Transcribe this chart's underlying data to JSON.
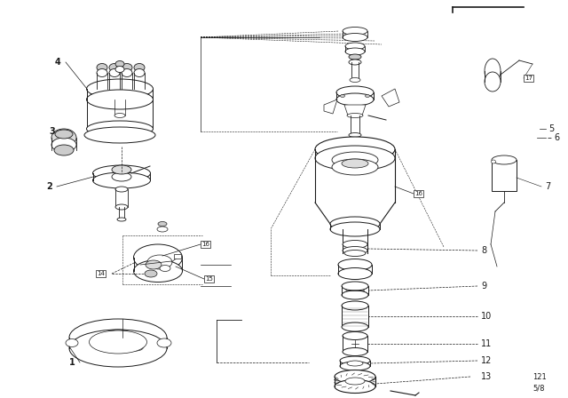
{
  "bg_color": "#ffffff",
  "line_color": "#1a1a1a",
  "fig_width": 6.4,
  "fig_height": 4.48,
  "dpi": 100,
  "footnote": "121\n5/8",
  "title_bar": true
}
